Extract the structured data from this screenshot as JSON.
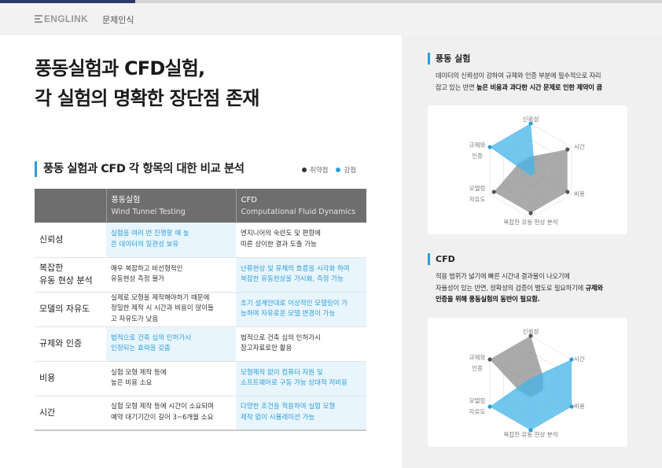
{
  "header": {
    "brand": "ENGLINK",
    "breadcrumb": "문제인식"
  },
  "title": {
    "line1": "풍동실험과 CFD실험,",
    "line2": "각 실험의 명확한 장단점 존재"
  },
  "comparison": {
    "heading": "풍동 실험과 CFD 각 항목의 대한 비교 분석",
    "legend": {
      "weak": "취약점",
      "strong": "강점",
      "weak_color": "#333333",
      "strong_color": "#2a9fd8"
    },
    "columns": [
      {
        "title": "",
        "subtitle": ""
      },
      {
        "title": "풍동실험",
        "subtitle": "Wind Tunnel Testing"
      },
      {
        "title": "CFD",
        "subtitle": "Computational Fluid Dynamics"
      }
    ],
    "rows": [
      {
        "label_1": "신뢰성",
        "label_2": "",
        "wind_1": "실험을 여러 번 진행할 때 높",
        "wind_2": "은 데이터의 일관성 보유",
        "wind_3": "",
        "cfd_1": "엔지니어의 숙련도 및 편향에",
        "cfd_2": "따른 상이한 결과 도출 가능",
        "strength": "wind"
      },
      {
        "label_1": "복잡한",
        "label_2": "유동 현상 분석",
        "wind_1": "매우 복잡하고 비선형적인",
        "wind_2": "유동현상 측정 불가",
        "wind_3": "",
        "cfd_1": "난류현상 및 유체의 흐름을 시각화 하여",
        "cfd_2": "복잡한 유동현상을 가시화, 측정 가능",
        "strength": "cfd"
      },
      {
        "label_1": "모델의 자유도",
        "label_2": "",
        "wind_1": "실제로 모형을 제작해야하기 때문에",
        "wind_2": "정밀한 제작 시 시간과 비용이 많이들",
        "wind_3": "고 자유도가 낮음",
        "cfd_1": "초기 설계안대로 이상적인 모델링이 가",
        "cfd_2": "능하며 자유로운 모델 변경이 가능",
        "strength": "cfd"
      },
      {
        "label_1": "규제와 인증",
        "label_2": "",
        "wind_1": "법적으로 건축 심의 인허가시",
        "wind_2": "인정되는 효력을 갖춤",
        "wind_3": "",
        "cfd_1": "법적으로 건축 심의 인허가시",
        "cfd_2": "참고자료로만 활용",
        "strength": "wind"
      },
      {
        "label_1": "비용",
        "label_2": "",
        "wind_1": "실험 모형 제작 등에",
        "wind_2": "높은 비용 소요",
        "wind_3": "",
        "cfd_1": "모형제작 없이 컴퓨터 자원 및",
        "cfd_2": "소프트웨어로 구동 가능 상대적 저비용",
        "strength": "cfd"
      },
      {
        "label_1": "시간",
        "label_2": "",
        "wind_1": "실험 모형 제작 등에 시간이 소요되며",
        "wind_2": "예약 대기기간이 길어 3~6개월 소요",
        "wind_3": "",
        "cfd_1": "다양한 조건을 적용하여 실험 모형",
        "cfd_2": "제작 없이 시뮬레이션 가능",
        "strength": "cfd"
      }
    ]
  },
  "wind_info": {
    "heading": "풍동 실험",
    "text_1": "데이터의 신뢰성이 강하여 규제와 인증 부분에 필수적으로 자리",
    "text_2a": "잡고 있는 반면 ",
    "text_2b": "높은 비용과 과다한 시간 문제로 인한 제약이 큼"
  },
  "cfd_info": {
    "heading": "CFD",
    "text_1": "적용 범위가 넓기에 빠른 시간내 결과물이 나오기에",
    "text_2a": "자율성이 있는 반면, 정확성의 검증이 별도로 필요하기에 ",
    "text_2b": "규제와",
    "text_3": "인증을 위해 풍동실험의 동반이 필요함."
  },
  "radar_labels": {
    "top": "신뢰성",
    "upper_right": "시간",
    "lower_right": "비용",
    "bottom": "복잡한 유동 현상 분석",
    "lower_left_1": "모델링",
    "lower_left_2": "자유도",
    "upper_left_1": "규제와",
    "upper_left_2": "인증"
  },
  "radar_wind": {
    "axes": [
      "신뢰성",
      "시간",
      "비용",
      "복잡한 유동 현상 분석",
      "모델링 자유도",
      "규제와 인증"
    ],
    "strength": [
      1.0,
      0.1,
      0.1,
      0.1,
      0.1,
      1.0
    ],
    "weakness": [
      0.3,
      0.9,
      0.9,
      0.9,
      0.9,
      0.3
    ]
  },
  "radar_cfd": {
    "axes": [
      "신뢰성",
      "시간",
      "비용",
      "복잡한 유동 현상 분석",
      "모델링 자유도",
      "규제와 인증"
    ],
    "strength": [
      0.1,
      1.0,
      1.0,
      1.0,
      1.0,
      0.1
    ],
    "weakness": [
      1.0,
      0.3,
      0.3,
      0.3,
      0.3,
      1.0
    ]
  }
}
